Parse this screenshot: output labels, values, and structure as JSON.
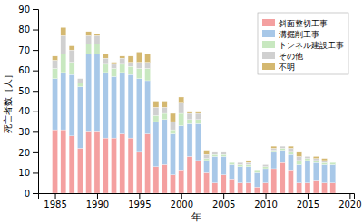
{
  "chart_data": {
    "type": "bar",
    "stacked": true,
    "xlabel": "年",
    "ylabel": "死亡者数［人］",
    "x": [
      1985,
      1986,
      1987,
      1988,
      1989,
      1990,
      1991,
      1992,
      1993,
      1994,
      1995,
      1996,
      1997,
      1998,
      1999,
      2000,
      2001,
      2002,
      2003,
      2004,
      2005,
      2006,
      2007,
      2008,
      2009,
      2010,
      2011,
      2012,
      2013,
      2014,
      2015,
      2016,
      2017,
      2018
    ],
    "series": [
      {
        "name": "斜面整切工事",
        "color": "#f4a0a0",
        "values": [
          31,
          31,
          28,
          22,
          30,
          30,
          27,
          27,
          29,
          27,
          20,
          29,
          13,
          14,
          9,
          11,
          18,
          16,
          10,
          5,
          9,
          7,
          5,
          5,
          3,
          5,
          12,
          15,
          11,
          5,
          5,
          6,
          5,
          5
        ]
      },
      {
        "name": "溝掘削工事",
        "color": "#a8c8e8",
        "values": [
          25,
          28,
          30,
          30,
          38,
          38,
          32,
          30,
          30,
          31,
          36,
          26,
          22,
          22,
          20,
          22,
          16,
          18,
          6,
          13,
          9,
          7,
          8,
          8,
          7,
          7,
          8,
          6,
          8,
          9,
          11,
          9,
          9,
          9
        ]
      },
      {
        "name": "トンネル建設工事",
        "color": "#c8e8c0",
        "values": [
          5,
          9,
          6,
          2,
          5,
          5,
          4,
          4,
          4,
          4,
          5,
          6,
          3,
          3,
          2,
          6,
          2,
          2,
          1,
          1,
          1,
          1,
          1,
          1,
          1,
          1,
          1,
          1,
          1,
          2,
          1,
          1,
          1,
          1
        ]
      },
      {
        "name": "その他",
        "color": "#d0d0d0",
        "values": [
          4,
          9,
          6,
          2,
          4,
          4,
          3,
          2,
          3,
          2,
          3,
          3,
          4,
          3,
          4,
          5,
          3,
          3,
          2,
          1,
          1,
          0,
          1,
          1,
          0,
          1,
          1,
          1,
          2,
          2,
          1,
          1,
          1,
          0
        ]
      },
      {
        "name": "不明",
        "color": "#d4b870",
        "values": [
          2,
          4,
          2,
          0,
          2,
          1,
          2,
          1,
          1,
          3,
          5,
          4,
          3,
          3,
          4,
          3,
          1,
          1,
          2,
          0,
          0,
          0,
          0,
          1,
          0,
          0,
          1,
          0,
          1,
          2,
          0,
          1,
          1,
          0
        ]
      }
    ],
    "xlim": [
      1983.0,
      2020.5
    ],
    "xticks": [
      1985,
      1990,
      1995,
      2000,
      2005,
      2010,
      2015,
      2020
    ],
    "ylim": [
      0,
      90
    ],
    "yticks": [
      0,
      10,
      20,
      30,
      40,
      50,
      60,
      70,
      80,
      90
    ],
    "grid": false,
    "legend": "upper right"
  }
}
